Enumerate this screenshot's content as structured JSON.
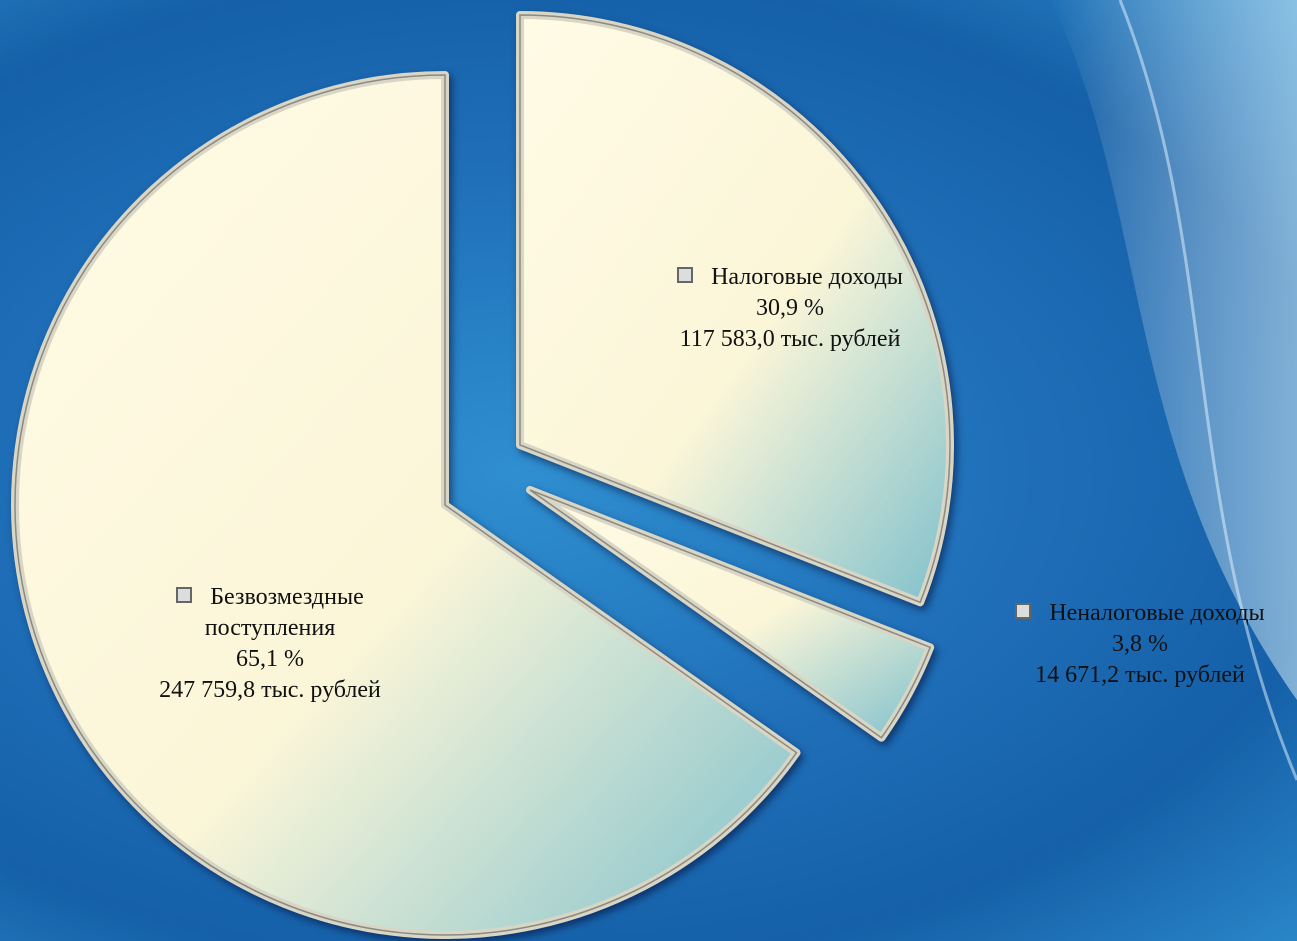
{
  "chart_data": {
    "type": "pie",
    "categories": [
      "Налоговые доходы",
      "Неналоговые доходы",
      "Безвозмездные поступления"
    ],
    "values": [
      30.9,
      3.8,
      65.1
    ],
    "value_labels": [
      "30,9 %",
      "3,8 %",
      "65,1 %"
    ],
    "amounts": [
      117583.0,
      14671.2,
      247759.8
    ],
    "amount_labels": [
      "117 583,0 тыс. рублей",
      "14 671,2 тыс. рублей",
      "247 759,8 тыс. рублей"
    ]
  }
}
